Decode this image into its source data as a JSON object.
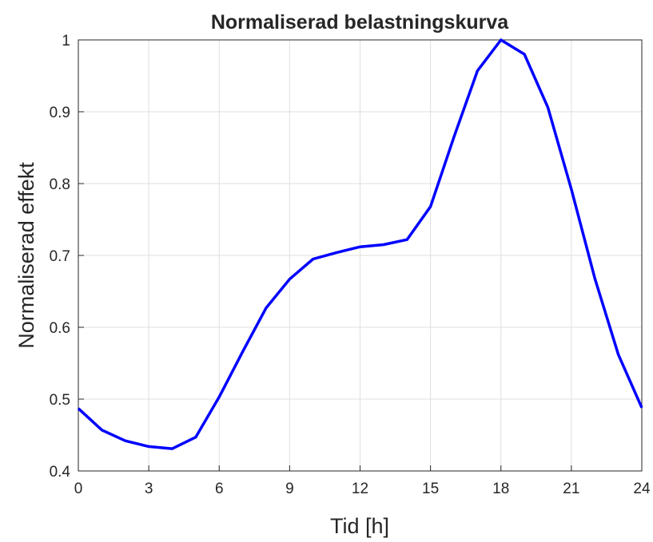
{
  "chart_data": {
    "type": "line",
    "title": "Normaliserad belastningskurva",
    "xlabel": "Tid [h]",
    "ylabel": "Normaliserad effekt",
    "x": [
      0,
      1,
      2,
      3,
      4,
      5,
      6,
      7,
      8,
      9,
      10,
      11,
      12,
      13,
      14,
      15,
      16,
      17,
      18,
      19,
      20,
      21,
      22,
      23,
      24
    ],
    "series": [
      {
        "name": "Normaliserad effekt",
        "color": "#0000ff",
        "values": [
          0.487,
          0.457,
          0.442,
          0.434,
          0.431,
          0.447,
          0.503,
          0.566,
          0.627,
          0.667,
          0.695,
          0.704,
          0.712,
          0.715,
          0.722,
          0.768,
          0.865,
          0.957,
          1.0,
          0.98,
          0.906,
          0.792,
          0.668,
          0.562,
          0.488
        ]
      }
    ],
    "xlim": [
      0,
      24
    ],
    "xticks": [
      0,
      3,
      6,
      9,
      12,
      15,
      18,
      21,
      24
    ],
    "ylim": [
      0.4,
      1
    ],
    "yticks": [
      0.4,
      0.5,
      0.6,
      0.7,
      0.8,
      0.9,
      1
    ],
    "grid": true
  }
}
